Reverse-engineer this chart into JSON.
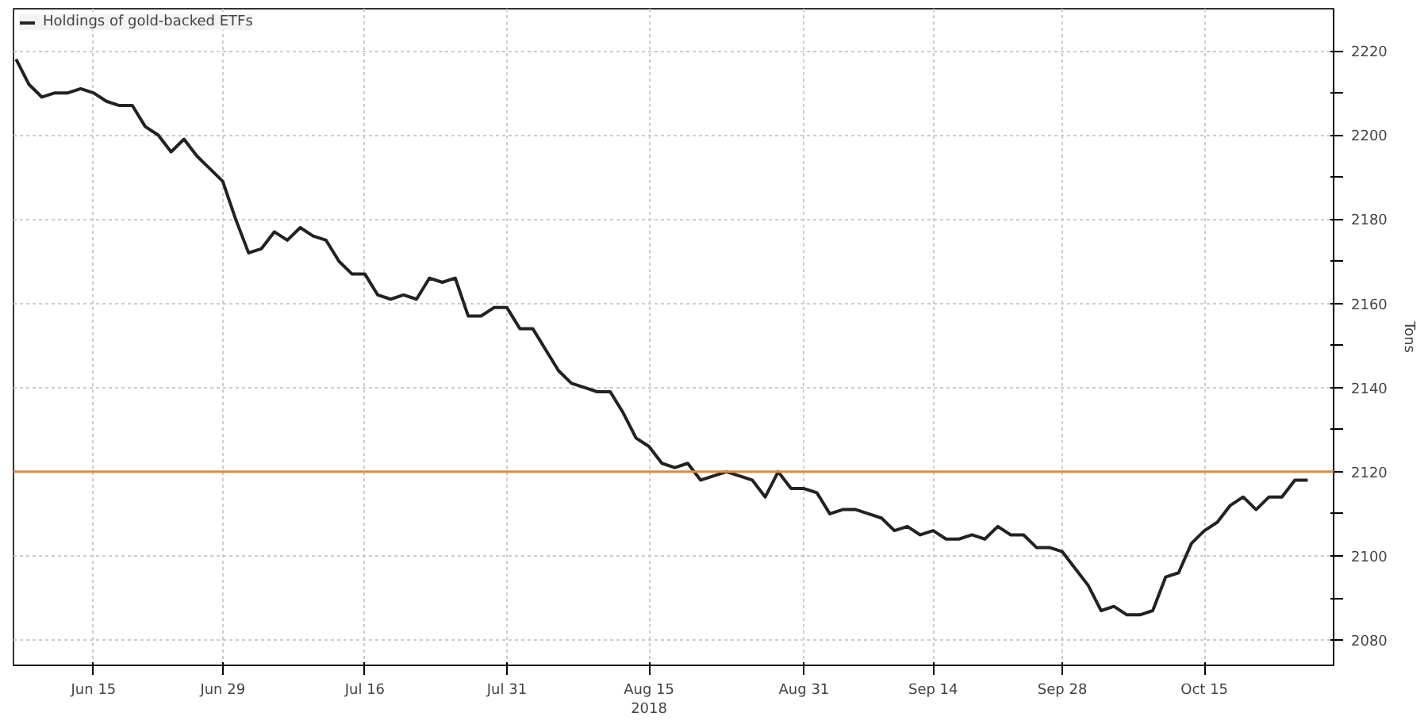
{
  "chart_data": {
    "type": "line",
    "categories": [
      null,
      null,
      null,
      null,
      null,
      null,
      "Jun 15",
      null,
      null,
      null,
      null,
      null,
      null,
      null,
      null,
      null,
      "Jun 29",
      null,
      null,
      null,
      null,
      null,
      null,
      null,
      null,
      null,
      null,
      "Jul 16",
      null,
      null,
      null,
      null,
      null,
      null,
      null,
      null,
      null,
      null,
      "Jul 31",
      null,
      null,
      null,
      null,
      null,
      null,
      null,
      null,
      null,
      null,
      "Aug 15\n2018",
      null,
      null,
      null,
      null,
      null,
      null,
      null,
      null,
      null,
      null,
      null,
      "Aug 31",
      null,
      null,
      null,
      null,
      null,
      null,
      null,
      null,
      null,
      "Sep 14",
      null,
      null,
      null,
      null,
      null,
      null,
      null,
      null,
      null,
      "Sep 28",
      null,
      null,
      null,
      null,
      null,
      null,
      null,
      null,
      null,
      null,
      "Oct 15",
      null,
      null,
      null,
      null,
      null,
      null,
      null,
      null
    ],
    "series": [
      {
        "name": "Holdings of gold-backed ETFs",
        "color": "#222222",
        "values": [
          2218,
          2212,
          2209,
          2210,
          2210,
          2211,
          2210,
          2208,
          2207,
          2207,
          2202,
          2200,
          2196,
          2199,
          2195,
          2192,
          2189,
          2180,
          2172,
          2173,
          2177,
          2175,
          2178,
          2176,
          2175,
          2170,
          2167,
          2167,
          2162,
          2161,
          2162,
          2161,
          2166,
          2165,
          2166,
          2157,
          2157,
          2159,
          2159,
          2154,
          2154,
          2149,
          2144,
          2141,
          2140,
          2139,
          2139,
          2134,
          2128,
          2126,
          2122,
          2121,
          2122,
          2118,
          2119,
          2120,
          2119,
          2118,
          2114,
          2120,
          2116,
          2116,
          2115,
          2110,
          2111,
          2111,
          2110,
          2109,
          2106,
          2107,
          2105,
          2106,
          2104,
          2104,
          2105,
          2104,
          2107,
          2105,
          2105,
          2102,
          2102,
          2101,
          2097,
          2093,
          2087,
          2088,
          2086,
          2086,
          2087,
          2095,
          2096,
          2103,
          2106,
          2108,
          2112,
          2114,
          2111,
          2114,
          2114,
          2118,
          2118
        ]
      }
    ],
    "ylabel": "Tons",
    "ylim": [
      2074,
      2230
    ],
    "yticks": [
      2080,
      {
        "value": 2090,
        "label": null
      },
      2100,
      {
        "value": 2110,
        "label": null
      },
      2120,
      {
        "value": 2130,
        "label": null
      },
      2140,
      {
        "value": 2150,
        "label": null
      },
      2160,
      {
        "value": 2170,
        "label": null
      },
      2180,
      {
        "value": 2190,
        "label": null
      },
      2200,
      {
        "value": 2210,
        "label": null
      },
      2220
    ],
    "ref_lines": [
      {
        "axis": "y",
        "value": 2120,
        "color": "#e08a3c"
      }
    ],
    "grid": true,
    "legend": "top left",
    "line_style": "solid"
  }
}
